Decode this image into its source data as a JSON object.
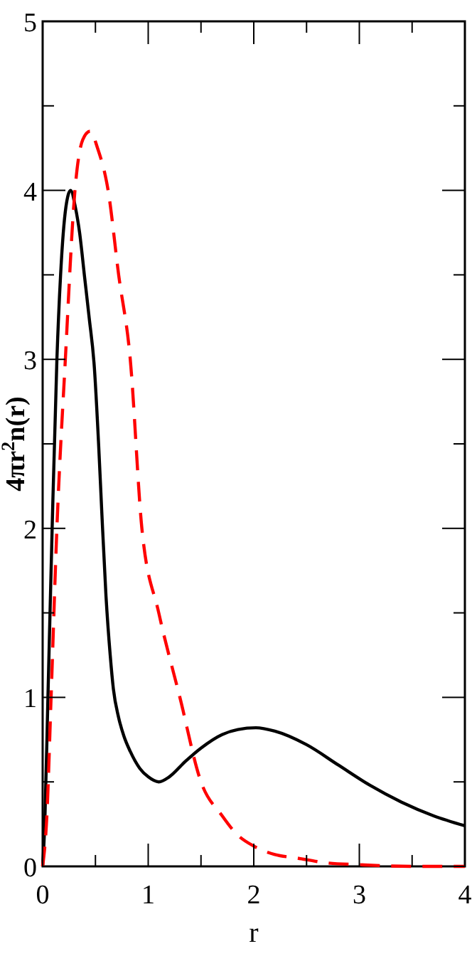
{
  "chart_data": {
    "type": "line",
    "xlabel": "r",
    "ylabel": "4πr$^{2}$n(r)",
    "xlim": [
      0,
      4
    ],
    "ylim": [
      0,
      5
    ],
    "xticks": [
      0,
      {
        "value": 0.5,
        "label": null
      },
      1,
      {
        "value": 1.5,
        "label": null
      },
      2,
      {
        "value": 2.5,
        "label": null
      },
      3,
      {
        "value": 3.5,
        "label": null
      },
      4
    ],
    "yticks": [
      0,
      {
        "value": 0.5,
        "label": null
      },
      1,
      {
        "value": 1.5,
        "label": null
      },
      2,
      {
        "value": 2.5,
        "label": null
      },
      3,
      {
        "value": 3.5,
        "label": null
      },
      4,
      {
        "value": 4.5,
        "label": null
      },
      5
    ],
    "grid": false,
    "marker": "none",
    "series": [
      {
        "color": "#000000",
        "line_style": "solid",
        "x": [
          0,
          0.02,
          0.05,
          0.09,
          0.135,
          0.17,
          0.22,
          0.265,
          0.31,
          0.35,
          0.395,
          0.44,
          0.49,
          0.53,
          0.56,
          0.6,
          0.64,
          0.67,
          0.72,
          0.77,
          0.83,
          0.92,
          1.0,
          1.1,
          1.2,
          1.35,
          1.5,
          1.7,
          1.85,
          2.02,
          2.2,
          2.5,
          2.8,
          3.1,
          3.4,
          3.7,
          4.0
        ],
        "values": [
          0,
          0.25,
          1.0,
          2.0,
          3.0,
          3.5,
          3.9,
          4.0,
          3.9,
          3.75,
          3.5,
          3.25,
          2.95,
          2.5,
          2.1,
          1.6,
          1.25,
          1.05,
          0.88,
          0.77,
          0.68,
          0.58,
          0.53,
          0.5,
          0.53,
          0.62,
          0.7,
          0.78,
          0.81,
          0.82,
          0.8,
          0.72,
          0.6,
          0.48,
          0.38,
          0.3,
          0.24
        ]
      },
      {
        "color": "#ff0000",
        "line_style": "dashed",
        "x": [
          0,
          0.04,
          0.08,
          0.135,
          0.215,
          0.306,
          0.38,
          0.45,
          0.52,
          0.62,
          0.72,
          0.83,
          0.94,
          1.1,
          1.3,
          1.5,
          1.7,
          1.84,
          2.0,
          2.2,
          2.4,
          2.7,
          3.0,
          3.5,
          4.0
        ],
        "values": [
          0,
          0.3,
          1.0,
          2.0,
          3.0,
          4.0,
          4.3,
          4.35,
          4.25,
          4.0,
          3.5,
          3.0,
          2.0,
          1.5,
          1.0,
          0.5,
          0.3,
          0.19,
          0.12,
          0.07,
          0.05,
          0.02,
          0.01,
          0.0,
          0.0
        ]
      }
    ]
  }
}
